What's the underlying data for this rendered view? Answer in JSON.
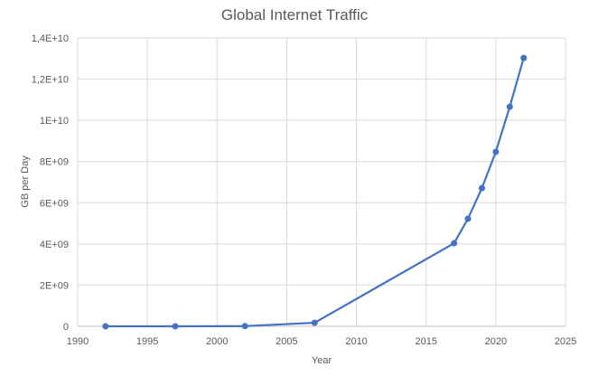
{
  "chart_data": {
    "type": "line",
    "title": "Global Internet Traffic",
    "xlabel": "Year",
    "ylabel": "GB per Day",
    "xlim": [
      1990,
      2025
    ],
    "ylim": [
      0,
      14000000000
    ],
    "x_ticks": [
      1990,
      1995,
      2000,
      2005,
      2010,
      2015,
      2020,
      2025
    ],
    "x_tick_labels": [
      "1990",
      "1995",
      "2000",
      "2005",
      "2010",
      "2015",
      "2020",
      "2025"
    ],
    "y_ticks": [
      0,
      2000000000,
      4000000000,
      6000000000,
      8000000000,
      10000000000,
      12000000000,
      14000000000
    ],
    "y_tick_labels": [
      "0",
      "2E+09",
      "4E+09",
      "6E+09",
      "8E+09",
      "1E+10",
      "1,2E+10",
      "1,4E+10"
    ],
    "grid": true,
    "series": [
      {
        "color": "#4472c4",
        "x": [
          1992,
          1997,
          2002,
          2007,
          2017,
          2018,
          2019,
          2020,
          2021,
          2022
        ],
        "y": [
          100,
          2400,
          8640000,
          172800000,
          4030000000,
          5220000000,
          6710000000,
          8470000000,
          10660000000,
          13030000000
        ]
      }
    ]
  }
}
